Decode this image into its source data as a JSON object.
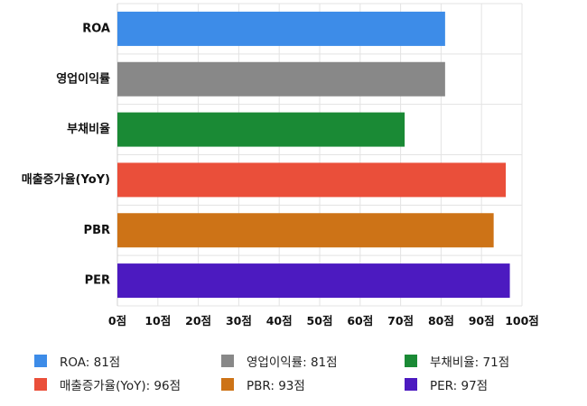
{
  "chart_data": {
    "type": "bar",
    "orientation": "horizontal",
    "categories": [
      "ROA",
      "영업이익률",
      "부채비율",
      "매출증가율(YoY)",
      "PBR",
      "PER"
    ],
    "values": [
      81,
      81,
      71,
      96,
      93,
      97
    ],
    "colors": [
      "#3d8ce8",
      "#888888",
      "#1a8a35",
      "#ea4f3a",
      "#cd7317",
      "#4c1ac0"
    ],
    "xlim": [
      0,
      100
    ],
    "xticks": [
      0,
      10,
      20,
      30,
      40,
      50,
      60,
      70,
      80,
      90,
      100
    ],
    "tick_labels": [
      "0점",
      "10점",
      "20점",
      "30점",
      "40점",
      "50점",
      "60점",
      "70점",
      "80점",
      "90점",
      "100점"
    ],
    "grid": true,
    "legend_position": "bottom",
    "legend": [
      {
        "label": "ROA: 81점",
        "color": "#3d8ce8"
      },
      {
        "label": "영업이익률: 81점",
        "color": "#888888"
      },
      {
        "label": "부채비율: 71점",
        "color": "#1a8a35"
      },
      {
        "label": "매출증가율(YoY): 96점",
        "color": "#ea4f3a"
      },
      {
        "label": "PBR: 93점",
        "color": "#cd7317"
      },
      {
        "label": "PER: 97점",
        "color": "#4c1ac0"
      }
    ]
  }
}
